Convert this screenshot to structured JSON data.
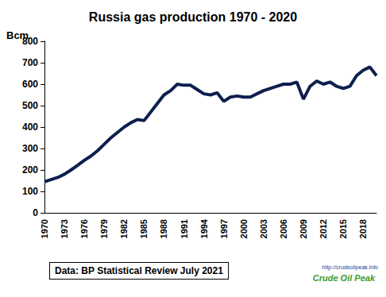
{
  "chart_data": {
    "type": "line",
    "title": "Russia gas production 1970 - 2020",
    "y_label": "Bcm",
    "categories": [
      "1970",
      null,
      null,
      "1973",
      null,
      null,
      "1976",
      null,
      null,
      "1979",
      null,
      null,
      "1982",
      null,
      null,
      "1985",
      null,
      null,
      "1988",
      null,
      null,
      "1991",
      null,
      null,
      "1994",
      null,
      null,
      "1997",
      null,
      null,
      "2000",
      null,
      null,
      "2003",
      null,
      null,
      "2006",
      null,
      null,
      "2009",
      null,
      null,
      "2012",
      null,
      null,
      "2015",
      null,
      null,
      "2018",
      null,
      null
    ],
    "values": [
      145,
      155,
      165,
      180,
      200,
      222,
      245,
      265,
      290,
      320,
      350,
      375,
      400,
      420,
      435,
      430,
      470,
      510,
      550,
      570,
      600,
      595,
      595,
      575,
      555,
      550,
      560,
      520,
      540,
      545,
      540,
      540,
      555,
      570,
      580,
      590,
      600,
      600,
      610,
      530,
      590,
      615,
      600,
      610,
      590,
      580,
      590,
      640,
      665,
      680,
      640
    ],
    "color": "#0d1f4f",
    "ylim": [
      0,
      800
    ],
    "yticks": [
      0,
      100,
      200,
      300,
      400,
      500,
      600,
      700,
      800
    ],
    "grid": false,
    "annotations": [
      "Data: BP Statistical Review July 2021",
      "http://crudeoilpeak.info",
      "Crude Oil Peak"
    ]
  }
}
